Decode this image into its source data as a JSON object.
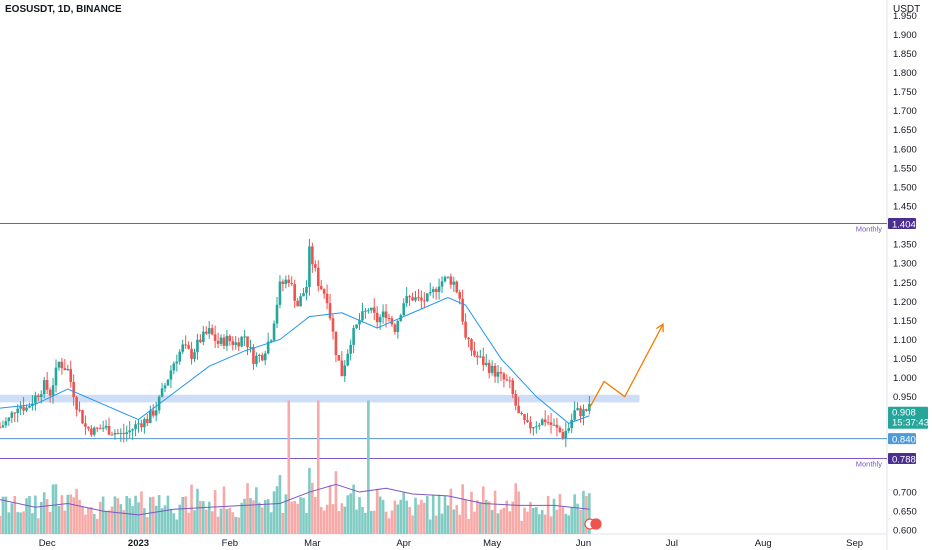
{
  "header": {
    "symbol_title": "EOSUSDT, 1D, BINANCE",
    "currency": "USDT"
  },
  "colors": {
    "up": "#26a69a",
    "down": "#ef5350",
    "vol_up": "#80cbc4",
    "vol_down": "#f7a9a7",
    "ma": "#2196f3",
    "vol_ma": "#7e57c2",
    "level_line": "#7e57c2",
    "level_tag": "#4a2f8f",
    "support_line": "#5c8fd6",
    "support_tag": "#4c9bd8",
    "price_tag": "#26a69a",
    "zone": "#c5d8f7",
    "projection": "#f57c00"
  },
  "chart_data": {
    "type": "candlestick",
    "y_axis": {
      "range": [
        0.59,
        1.99
      ],
      "ticks": [
        "1.950",
        "1.900",
        "1.850",
        "1.800",
        "1.750",
        "1.700",
        "1.650",
        "1.600",
        "1.550",
        "1.500",
        "1.450",
        "1.350",
        "1.300",
        "1.250",
        "1.200",
        "1.150",
        "1.100",
        "1.050",
        "1.000",
        "0.950",
        "0.700",
        "0.650",
        "0.600"
      ]
    },
    "x_axis": {
      "range": [
        "2022-11-15",
        "2023-09-12"
      ],
      "ticks": [
        {
          "label": "Dec",
          "date": "2022-12-01"
        },
        {
          "label": "2023",
          "date": "2023-01-01"
        },
        {
          "label": "Feb",
          "date": "2023-02-01"
        },
        {
          "label": "Mar",
          "date": "2023-03-01"
        },
        {
          "label": "Apr",
          "date": "2023-04-01"
        },
        {
          "label": "May",
          "date": "2023-05-01"
        },
        {
          "label": "Jun",
          "date": "2023-06-01"
        },
        {
          "label": "Jul",
          "date": "2023-07-01"
        },
        {
          "label": "Aug",
          "date": "2023-08-01"
        },
        {
          "label": "Sep",
          "date": "2023-09-01"
        }
      ]
    },
    "price_path": [
      [
        "2022-11-15",
        0.87
      ],
      [
        "2022-11-18",
        0.89
      ],
      [
        "2022-11-21",
        0.93
      ],
      [
        "2022-11-24",
        0.92
      ],
      [
        "2022-11-27",
        0.95
      ],
      [
        "2022-11-30",
        0.98
      ],
      [
        "2022-12-02",
        0.96
      ],
      [
        "2022-12-05",
        1.04
      ],
      [
        "2022-12-08",
        1.02
      ],
      [
        "2022-12-11",
        0.93
      ],
      [
        "2022-12-14",
        0.87
      ],
      [
        "2022-12-17",
        0.86
      ],
      [
        "2022-12-20",
        0.87
      ],
      [
        "2022-12-23",
        0.86
      ],
      [
        "2022-12-26",
        0.85
      ],
      [
        "2022-12-29",
        0.86
      ],
      [
        "2023-01-01",
        0.88
      ],
      [
        "2023-01-04",
        0.89
      ],
      [
        "2023-01-07",
        0.92
      ],
      [
        "2023-01-10",
        0.98
      ],
      [
        "2023-01-13",
        1.04
      ],
      [
        "2023-01-16",
        1.08
      ],
      [
        "2023-01-19",
        1.06
      ],
      [
        "2023-01-22",
        1.1
      ],
      [
        "2023-01-25",
        1.12
      ],
      [
        "2023-01-28",
        1.09
      ],
      [
        "2023-01-31",
        1.1
      ],
      [
        "2023-02-03",
        1.09
      ],
      [
        "2023-02-06",
        1.11
      ],
      [
        "2023-02-09",
        1.05
      ],
      [
        "2023-02-12",
        1.06
      ],
      [
        "2023-02-15",
        1.11
      ],
      [
        "2023-02-18",
        1.24
      ],
      [
        "2023-02-21",
        1.26
      ],
      [
        "2023-02-24",
        1.19
      ],
      [
        "2023-02-27",
        1.24
      ],
      [
        "2023-02-28",
        1.33
      ],
      [
        "2023-03-03",
        1.25
      ],
      [
        "2023-03-06",
        1.21
      ],
      [
        "2023-03-09",
        1.07
      ],
      [
        "2023-03-11",
        1.01
      ],
      [
        "2023-03-14",
        1.1
      ],
      [
        "2023-03-17",
        1.15
      ],
      [
        "2023-03-20",
        1.18
      ],
      [
        "2023-03-23",
        1.15
      ],
      [
        "2023-03-26",
        1.17
      ],
      [
        "2023-03-29",
        1.13
      ],
      [
        "2023-04-01",
        1.2
      ],
      [
        "2023-04-04",
        1.21
      ],
      [
        "2023-04-07",
        1.2
      ],
      [
        "2023-04-10",
        1.21
      ],
      [
        "2023-04-13",
        1.25
      ],
      [
        "2023-04-16",
        1.26
      ],
      [
        "2023-04-18",
        1.25
      ],
      [
        "2023-04-20",
        1.21
      ],
      [
        "2023-04-22",
        1.1
      ],
      [
        "2023-04-25",
        1.06
      ],
      [
        "2023-04-28",
        1.04
      ],
      [
        "2023-05-01",
        1.02
      ],
      [
        "2023-05-04",
        1.0
      ],
      [
        "2023-05-07",
        0.98
      ],
      [
        "2023-05-10",
        0.9
      ],
      [
        "2023-05-13",
        0.87
      ],
      [
        "2023-05-16",
        0.88
      ],
      [
        "2023-05-19",
        0.89
      ],
      [
        "2023-05-22",
        0.87
      ],
      [
        "2023-05-25",
        0.85
      ],
      [
        "2023-05-27",
        0.87
      ],
      [
        "2023-05-29",
        0.91
      ],
      [
        "2023-06-01",
        0.91
      ],
      [
        "2023-06-03",
        0.92
      ]
    ],
    "moving_average": [
      [
        "2022-11-15",
        0.92
      ],
      [
        "2022-11-27",
        0.93
      ],
      [
        "2022-12-08",
        0.97
      ],
      [
        "2022-12-20",
        0.93
      ],
      [
        "2023-01-01",
        0.89
      ],
      [
        "2023-01-13",
        0.96
      ],
      [
        "2023-01-25",
        1.03
      ],
      [
        "2023-02-06",
        1.07
      ],
      [
        "2023-02-18",
        1.1
      ],
      [
        "2023-02-28",
        1.16
      ],
      [
        "2023-03-11",
        1.17
      ],
      [
        "2023-03-23",
        1.13
      ],
      [
        "2023-04-04",
        1.17
      ],
      [
        "2023-04-16",
        1.21
      ],
      [
        "2023-04-22",
        1.19
      ],
      [
        "2023-05-04",
        1.05
      ],
      [
        "2023-05-16",
        0.95
      ],
      [
        "2023-05-27",
        0.88
      ],
      [
        "2023-06-03",
        0.9
      ]
    ],
    "volume_ma": [
      [
        "2022-11-15",
        0.68
      ],
      [
        "2022-11-27",
        0.66
      ],
      [
        "2022-12-08",
        0.67
      ],
      [
        "2022-12-20",
        0.65
      ],
      [
        "2023-01-01",
        0.64
      ],
      [
        "2023-01-13",
        0.655
      ],
      [
        "2023-01-25",
        0.66
      ],
      [
        "2023-02-06",
        0.665
      ],
      [
        "2023-02-18",
        0.67
      ],
      [
        "2023-02-28",
        0.7
      ],
      [
        "2023-03-09",
        0.72
      ],
      [
        "2023-03-17",
        0.7
      ],
      [
        "2023-03-26",
        0.71
      ],
      [
        "2023-04-04",
        0.695
      ],
      [
        "2023-04-16",
        0.69
      ],
      [
        "2023-04-28",
        0.67
      ],
      [
        "2023-05-10",
        0.665
      ],
      [
        "2023-05-22",
        0.665
      ],
      [
        "2023-06-03",
        0.655
      ]
    ],
    "volume_spike_dates": [
      "2023-02-21",
      "2023-03-03",
      "2023-03-20"
    ],
    "levels": [
      {
        "value": 1.404,
        "label": "1.404",
        "note": "Monthly"
      },
      {
        "value": 0.788,
        "label": "0.788",
        "note": "Monthly"
      },
      {
        "value": 0.84,
        "label": "0.840"
      }
    ],
    "zone": {
      "from": 0.935,
      "to": 0.955,
      "start": "2022-11-15",
      "end": "2023-06-20"
    },
    "current_price": {
      "value": 0.908,
      "label": "0.908",
      "countdown": "15:37:43"
    },
    "projection": [
      [
        "2023-06-03",
        0.92
      ],
      [
        "2023-06-08",
        0.99
      ],
      [
        "2023-06-15",
        0.95
      ],
      [
        "2023-06-28",
        1.14
      ]
    ]
  }
}
